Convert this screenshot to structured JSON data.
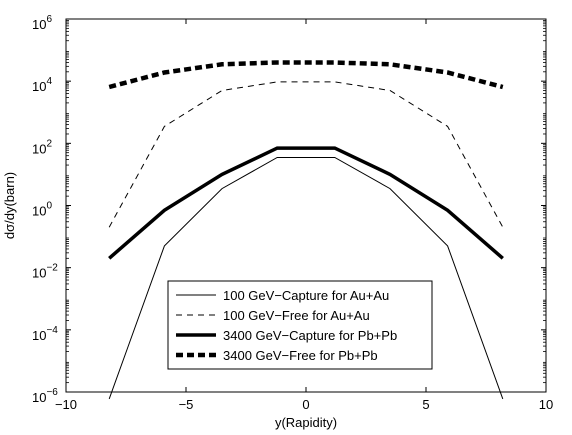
{
  "chart_data": {
    "type": "line",
    "xlabel": "y(Rapidity)",
    "ylabel": "dσ/dy(barn)",
    "xlim": [
      -10,
      10
    ],
    "ylim_exponent": [
      -6,
      6
    ],
    "yscale": "log",
    "grid": false,
    "legend_position": "bottom-center",
    "x_ticks": [
      {
        "value": -10,
        "label": "−10"
      },
      {
        "value": -5,
        "label": "−5"
      },
      {
        "value": 0,
        "label": "0"
      },
      {
        "value": 5,
        "label": "5"
      },
      {
        "value": 10,
        "label": "10"
      }
    ],
    "y_ticks": [
      {
        "exp": -6,
        "base": "10",
        "sup": "−6"
      },
      {
        "exp": -4,
        "base": "10",
        "sup": "−4"
      },
      {
        "exp": -2,
        "base": "10",
        "sup": "−2"
      },
      {
        "exp": 0,
        "base": "10",
        "sup": "0"
      },
      {
        "exp": 2,
        "base": "10",
        "sup": "2"
      },
      {
        "exp": 4,
        "base": "10",
        "sup": "4"
      },
      {
        "exp": 6,
        "base": "10",
        "sup": "6"
      }
    ],
    "series": [
      {
        "name": "100 GeV−Capture for Au+Au",
        "style": "thin-solid",
        "x": [
          -8.2,
          -5.9,
          -3.5,
          -1.2,
          1.2,
          3.5,
          5.9,
          8.2
        ],
        "y": [
          6e-07,
          0.05,
          3.5,
          35,
          35,
          3.5,
          0.05,
          6e-07
        ]
      },
      {
        "name": "100 GeV−Free for Au+Au",
        "style": "thin-dashed",
        "x": [
          -8.2,
          -5.9,
          -3.5,
          -1.2,
          1.2,
          3.5,
          5.9,
          8.2
        ],
        "y": [
          0.2,
          350,
          5000,
          9500,
          9500,
          5000,
          350,
          0.2
        ]
      },
      {
        "name": "3400 GeV−Capture for Pb+Pb",
        "style": "thick-solid",
        "x": [
          -8.2,
          -5.9,
          -3.5,
          -1.2,
          1.2,
          3.5,
          5.9,
          8.2
        ],
        "y": [
          0.02,
          0.7,
          10,
          70,
          70,
          10,
          0.7,
          0.02
        ]
      },
      {
        "name": "3400 GeV−Free for Pb+Pb",
        "style": "thick-dashed",
        "x": [
          -8.2,
          -5.9,
          -3.5,
          -1.2,
          1.2,
          3.5,
          5.9,
          8.2
        ],
        "y": [
          6500,
          19000,
          35000,
          40000,
          40000,
          35000,
          19000,
          6500
        ]
      }
    ]
  }
}
